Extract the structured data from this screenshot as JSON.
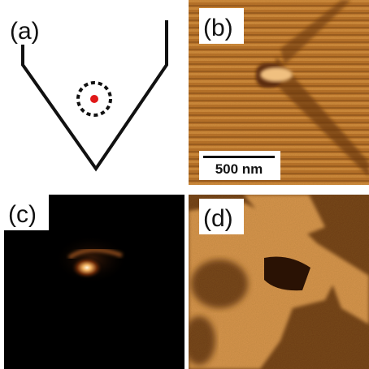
{
  "panels": [
    {
      "label": "(a)"
    },
    {
      "label": "(b)"
    },
    {
      "label": "(c)"
    },
    {
      "label": "(d)"
    }
  ],
  "scale_bar": "500 nm"
}
